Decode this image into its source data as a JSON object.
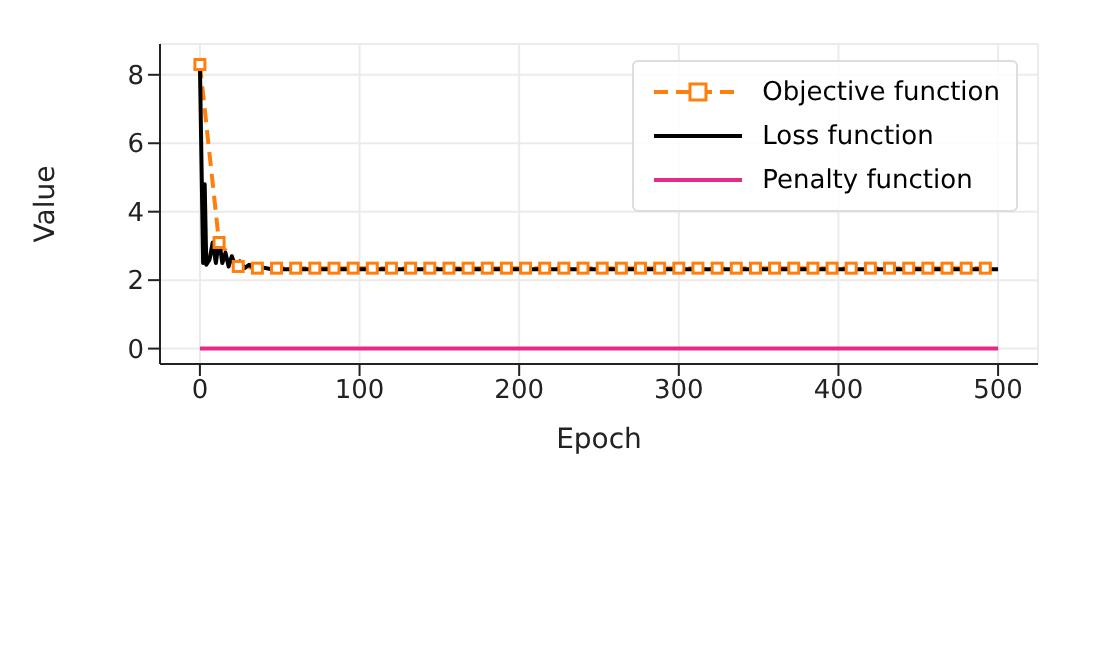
{
  "chart_data": {
    "type": "line",
    "xlabel": "Epoch",
    "ylabel": "Value",
    "xlim": [
      -25,
      525
    ],
    "ylim": [
      -0.45,
      8.9
    ],
    "xticks": [
      0,
      100,
      200,
      300,
      400,
      500
    ],
    "yticks": [
      0,
      2,
      4,
      6,
      8
    ],
    "grid": true,
    "legend": "top right",
    "series": [
      {
        "name": "Objective function",
        "color": "#ff7f0e",
        "line_style": "dashed",
        "marker": "square",
        "x": [
          0,
          12,
          24,
          36,
          48,
          60,
          72,
          84,
          96,
          108,
          120,
          132,
          144,
          156,
          168,
          180,
          192,
          204,
          216,
          228,
          240,
          252,
          264,
          276,
          288,
          300,
          312,
          324,
          336,
          348,
          360,
          372,
          384,
          396,
          408,
          420,
          432,
          444,
          456,
          468,
          480,
          492
        ],
        "values": [
          8.3,
          3.1,
          2.4,
          2.35,
          2.35,
          2.35,
          2.35,
          2.35,
          2.35,
          2.35,
          2.35,
          2.35,
          2.35,
          2.35,
          2.35,
          2.35,
          2.35,
          2.35,
          2.35,
          2.35,
          2.35,
          2.35,
          2.35,
          2.35,
          2.35,
          2.35,
          2.35,
          2.35,
          2.35,
          2.35,
          2.35,
          2.35,
          2.35,
          2.35,
          2.35,
          2.35,
          2.35,
          2.35,
          2.35,
          2.35,
          2.35,
          2.35
        ]
      },
      {
        "name": "Loss function",
        "color": "#000000",
        "line_style": "solid",
        "marker": "none",
        "x": [
          0,
          2,
          3,
          4,
          6,
          8,
          10,
          12,
          14,
          16,
          18,
          20,
          22,
          25,
          28,
          31,
          34,
          38,
          45,
          60,
          500
        ],
        "values": [
          8.3,
          2.5,
          4.8,
          2.45,
          2.6,
          3.1,
          2.5,
          3.2,
          2.5,
          2.8,
          2.4,
          2.7,
          2.4,
          2.55,
          2.35,
          2.45,
          2.33,
          2.38,
          2.32,
          2.32,
          2.32
        ]
      },
      {
        "name": "Penalty function",
        "color": "#e7298a",
        "line_style": "solid",
        "marker": "none",
        "x": [
          0,
          500
        ],
        "values": [
          0,
          0
        ]
      }
    ]
  }
}
